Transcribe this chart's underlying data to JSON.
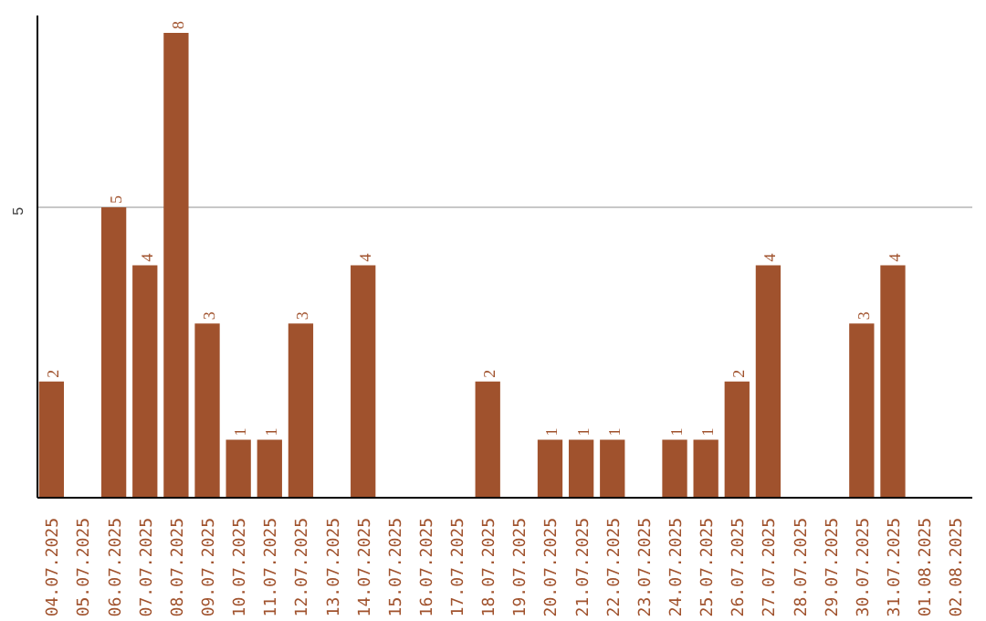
{
  "chart_data": {
    "type": "bar",
    "categories": [
      "04.07.2025",
      "05.07.2025",
      "06.07.2025",
      "07.07.2025",
      "08.07.2025",
      "09.07.2025",
      "10.07.2025",
      "11.07.2025",
      "12.07.2025",
      "13.07.2025",
      "14.07.2025",
      "15.07.2025",
      "16.07.2025",
      "17.07.2025",
      "18.07.2025",
      "19.07.2025",
      "20.07.2025",
      "21.07.2025",
      "22.07.2025",
      "23.07.2025",
      "24.07.2025",
      "25.07.2025",
      "26.07.2025",
      "27.07.2025",
      "28.07.2025",
      "29.07.2025",
      "30.07.2025",
      "31.07.2025",
      "01.08.2025",
      "02.08.2025"
    ],
    "values": [
      2,
      0,
      5,
      4,
      8,
      3,
      1,
      1,
      3,
      0,
      4,
      0,
      0,
      0,
      2,
      0,
      1,
      1,
      1,
      0,
      1,
      1,
      2,
      4,
      0,
      0,
      3,
      4,
      0,
      0
    ],
    "value_labels": [
      "2",
      null,
      "5",
      "4",
      "8",
      "3",
      "1",
      "1",
      "3",
      null,
      "4",
      null,
      null,
      null,
      "2",
      null,
      "1",
      "1",
      "1",
      null,
      "1",
      "1",
      "2",
      "4",
      null,
      null,
      "3",
      "4",
      null,
      null
    ],
    "color": "#a0522d",
    "ylim": [
      0,
      8.3
    ],
    "yticks": [
      5
    ],
    "grid": "y"
  }
}
